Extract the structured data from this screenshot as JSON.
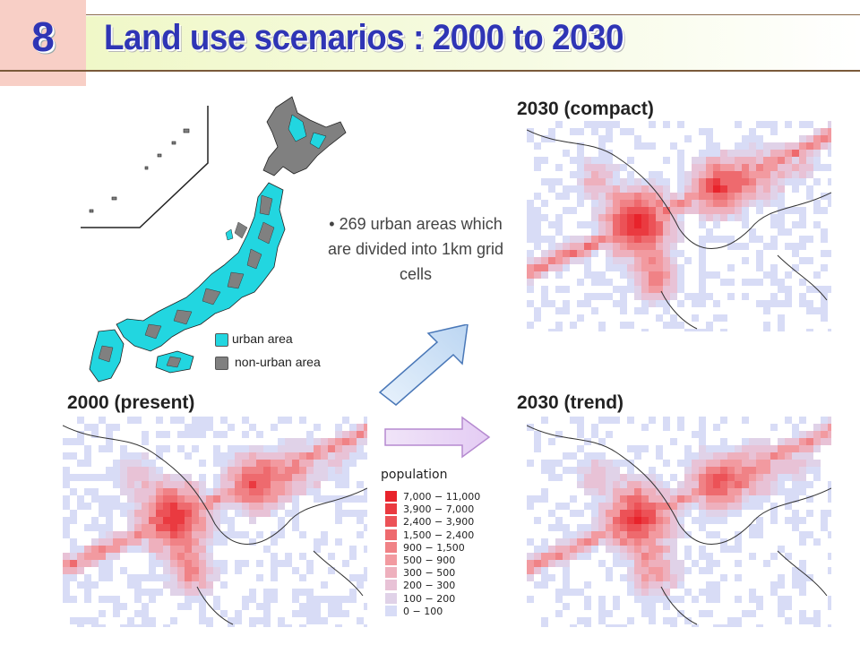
{
  "header": {
    "slide_number": "8",
    "title": "Land use scenarios :  2000 to 2030"
  },
  "panels": {
    "present": "2000 (present)",
    "compact": "2030 (compact)",
    "trend": "2030 (trend)"
  },
  "note": "• 269 urban areas which are divided into 1km grid cells",
  "japan_legend": {
    "urban_label": "urban area",
    "urban_color": "#22d6e0",
    "nonurban_label": "non-urban area",
    "nonurban_color": "#808080"
  },
  "population_legend": {
    "title": "population",
    "rows": [
      {
        "range": "7,000 − 11,000",
        "color": "#e8232b"
      },
      {
        "range": "3,900 −  7,000",
        "color": "#ea3a40"
      },
      {
        "range": "2,400 −  3,900",
        "color": "#ec5257"
      },
      {
        "range": "1,500 −  2,400",
        "color": "#ee6a6e"
      },
      {
        "range": "900 −  1,500",
        "color": "#f08286"
      },
      {
        "range": "500 −    900",
        "color": "#f29aa0"
      },
      {
        "range": "300 −    500",
        "color": "#eeb0bd"
      },
      {
        "range": "200 −    300",
        "color": "#e8c2d6"
      },
      {
        "range": "100 −    200",
        "color": "#e0d2e8"
      },
      {
        "range": "0 −    100",
        "color": "#d8dcf6"
      }
    ]
  }
}
